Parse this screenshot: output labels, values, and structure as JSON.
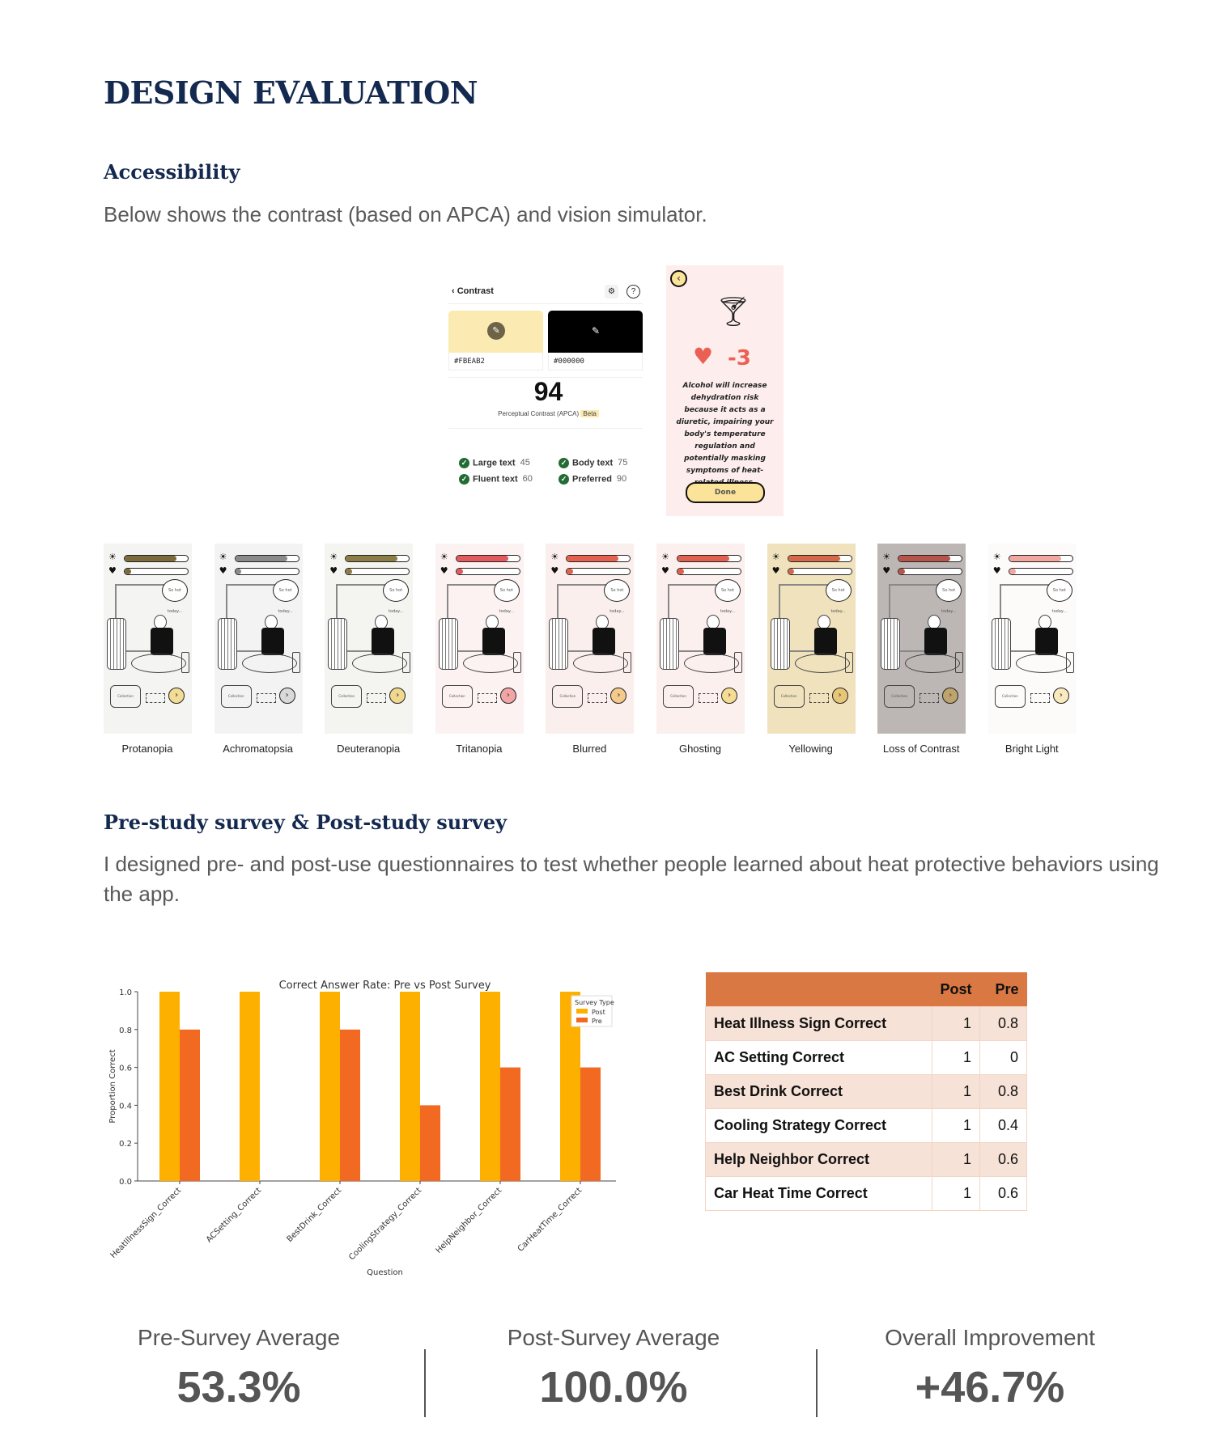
{
  "page_title": "DESIGN EVALUATION",
  "accessibility": {
    "heading": "Accessibility",
    "description": "Below shows the contrast (based on APCA) and vision simulator.",
    "contrast_panel": {
      "back_label": "Contrast",
      "foreground_hex": "#FBEAB2",
      "background_hex": "#000000",
      "score": "94",
      "score_label": "Perceptual Contrast (APCA)",
      "beta_badge": "Beta",
      "checks": [
        {
          "label": "Large text",
          "value": "45"
        },
        {
          "label": "Body text",
          "value": "75"
        },
        {
          "label": "Fluent text",
          "value": "60"
        },
        {
          "label": "Preferred",
          "value": "90"
        }
      ],
      "colors": {
        "foreground": "#FBEAB2",
        "background": "#000000",
        "check": "#236b35"
      }
    },
    "app_card": {
      "heart_delta": "-3",
      "message": "Alcohol will increase dehydration risk because it acts as a diuretic, impairing your body's temperature regulation and potentially masking symptoms of heat-related illness.",
      "done_label": "Done"
    },
    "simulations": [
      {
        "label": "Protanopia",
        "bg": "#f4f4f2",
        "bar": "#7b6b3d",
        "btn": "#f3dc95"
      },
      {
        "label": "Achromatopsia",
        "bg": "#f3f3f3",
        "bar": "#8a8a8a",
        "btn": "#d9d9d9"
      },
      {
        "label": "Deuteranopia",
        "bg": "#f4f4f1",
        "bar": "#8c7c45",
        "btn": "#f0d98f"
      },
      {
        "label": "Tritanopia",
        "bg": "#fcf2f2",
        "bar": "#e05a5e",
        "btn": "#f2a5a5"
      },
      {
        "label": "Blurred",
        "bg": "#fbefed",
        "bar": "#e4614f",
        "btn": "#f4c98c"
      },
      {
        "label": "Ghosting",
        "bg": "#fbf0ee",
        "bar": "#e06050",
        "btn": "#f6dc92"
      },
      {
        "label": "Yellowing",
        "bg": "#efe2bd",
        "bar": "#d6684a",
        "btn": "#e7c678"
      },
      {
        "label": "Loss of Contrast",
        "bg": "#bcb7b5",
        "bar": "#b5544a",
        "btn": "#bfa36c"
      },
      {
        "label": "Bright Light",
        "bg": "#fdfafa",
        "bar": "#f0a7a0",
        "btn": "#f8e9bf"
      }
    ]
  },
  "survey": {
    "heading": "Pre-study survey & Post-study survey",
    "description": "I designed pre- and post-use questionnaires to test whether people learned about heat protective behaviors using the app.",
    "table": {
      "headers": [
        "",
        "Post",
        "Pre"
      ],
      "rows": [
        [
          "Heat Illness Sign Correct",
          "1",
          "0.8"
        ],
        [
          "AC Setting Correct",
          "1",
          "0"
        ],
        [
          "Best Drink Correct",
          "1",
          "0.8"
        ],
        [
          "Cooling Strategy Correct",
          "1",
          "0.4"
        ],
        [
          "Help Neighbor Correct",
          "1",
          "0.6"
        ],
        [
          "Car Heat Time Correct",
          "1",
          "0.6"
        ]
      ]
    },
    "stats": [
      {
        "label": "Pre-Survey Average",
        "value": "53.3%"
      },
      {
        "label": "Post-Survey Average",
        "value": "100.0%"
      },
      {
        "label": "Overall Improvement",
        "value": "+46.7%"
      }
    ]
  },
  "chart_data": {
    "type": "bar",
    "title": "Correct Answer Rate: Pre vs Post Survey",
    "xlabel": "Question",
    "ylabel": "Proportion Correct",
    "categories": [
      "HeatIllnessSign_Correct",
      "ACSetting_Correct",
      "BestDrink_Correct",
      "CoolingStrategy_Correct",
      "HelpNeighbor_Correct",
      "CarHeatTime_Correct"
    ],
    "series": [
      {
        "name": "Post",
        "color": "#fdb000",
        "values": [
          1,
          1,
          1,
          1,
          1,
          1
        ]
      },
      {
        "name": "Pre",
        "color": "#f26a21",
        "values": [
          0.8,
          0,
          0.8,
          0.4,
          0.6,
          0.6
        ]
      }
    ],
    "ylim": [
      0,
      1
    ],
    "yticks": [
      "0.0",
      "0.2",
      "0.4",
      "0.6",
      "0.8",
      "1.0"
    ],
    "legend": {
      "title": "Survey Type",
      "position": "top-right"
    },
    "grid": false
  }
}
